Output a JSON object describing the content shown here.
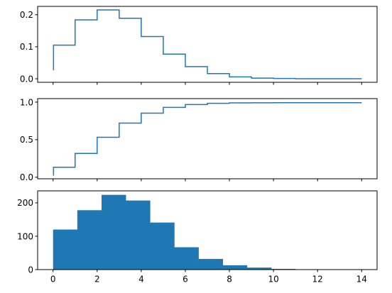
{
  "chart_data": [
    {
      "type": "line",
      "drawstyle": "steps-post",
      "x": [
        0,
        0.02,
        1,
        2,
        3,
        4,
        5,
        6,
        7,
        8,
        9,
        10,
        11,
        12,
        13,
        14
      ],
      "values": [
        0.028,
        0.105,
        0.184,
        0.215,
        0.189,
        0.132,
        0.077,
        0.038,
        0.016,
        0.006,
        0.002,
        0.001,
        0.0,
        0.0,
        0.0,
        0.0
      ],
      "xlim": [
        -0.7,
        14.7
      ],
      "ylim": [
        -0.011,
        0.226
      ],
      "yticks": [
        0.0,
        0.1,
        0.2
      ],
      "yticklabels": [
        "0.0",
        "0.1",
        "0.2"
      ],
      "color": "#1f77b4",
      "show_xticklabels": false
    },
    {
      "type": "line",
      "drawstyle": "steps-post",
      "x": [
        0,
        0.02,
        1,
        2,
        3,
        4,
        5,
        6,
        7,
        8,
        9,
        10,
        11,
        12,
        13,
        14
      ],
      "values": [
        0.028,
        0.133,
        0.317,
        0.532,
        0.721,
        0.853,
        0.93,
        0.968,
        0.984,
        0.99,
        0.992,
        0.993,
        0.993,
        0.993,
        0.993,
        0.993
      ],
      "xlim": [
        -0.7,
        14.7
      ],
      "ylim": [
        -0.021,
        1.047
      ],
      "yticks": [
        0.0,
        0.5,
        1.0
      ],
      "yticklabels": [
        "0.0",
        "0.5",
        "1.0"
      ],
      "color": "#1f77b4",
      "show_xticklabels": false
    },
    {
      "type": "bar",
      "histogram": true,
      "bin_edges": [
        0,
        1.1,
        2.2,
        3.3,
        4.4,
        5.5,
        6.6,
        7.7,
        8.8,
        9.9,
        11.0
      ],
      "values": [
        120,
        178,
        224,
        207,
        141,
        67,
        32,
        13,
        6,
        2
      ],
      "xlim": [
        -0.7,
        14.7
      ],
      "ylim": [
        0,
        236
      ],
      "yticks": [
        0,
        100,
        200
      ],
      "yticklabels": [
        "0",
        "100",
        "200"
      ],
      "xticks": [
        0,
        2,
        4,
        6,
        8,
        10,
        12,
        14
      ],
      "xticklabels": [
        "0",
        "2",
        "4",
        "6",
        "8",
        "10",
        "12",
        "14"
      ],
      "color": "#1f77b4",
      "show_xticklabels": true
    }
  ]
}
